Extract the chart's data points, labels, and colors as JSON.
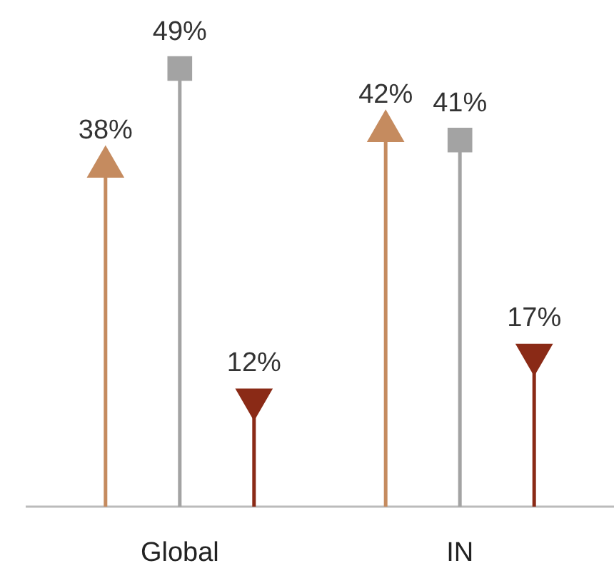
{
  "chart_data": {
    "type": "lollipop",
    "categories": [
      "Global",
      "IN"
    ],
    "series": [
      {
        "color": "#c58b5f",
        "marker": "triangle",
        "values": [
          38,
          42
        ],
        "value_labels": [
          "38%",
          "42%"
        ]
      },
      {
        "color": "#a3a3a3",
        "marker": "square",
        "values": [
          49,
          41
        ],
        "value_labels": [
          "49%",
          "41%"
        ]
      },
      {
        "color": "#8a2a16",
        "marker": "triangle-down",
        "values": [
          12,
          17
        ],
        "value_labels": [
          "12%",
          "17%"
        ]
      }
    ]
  }
}
